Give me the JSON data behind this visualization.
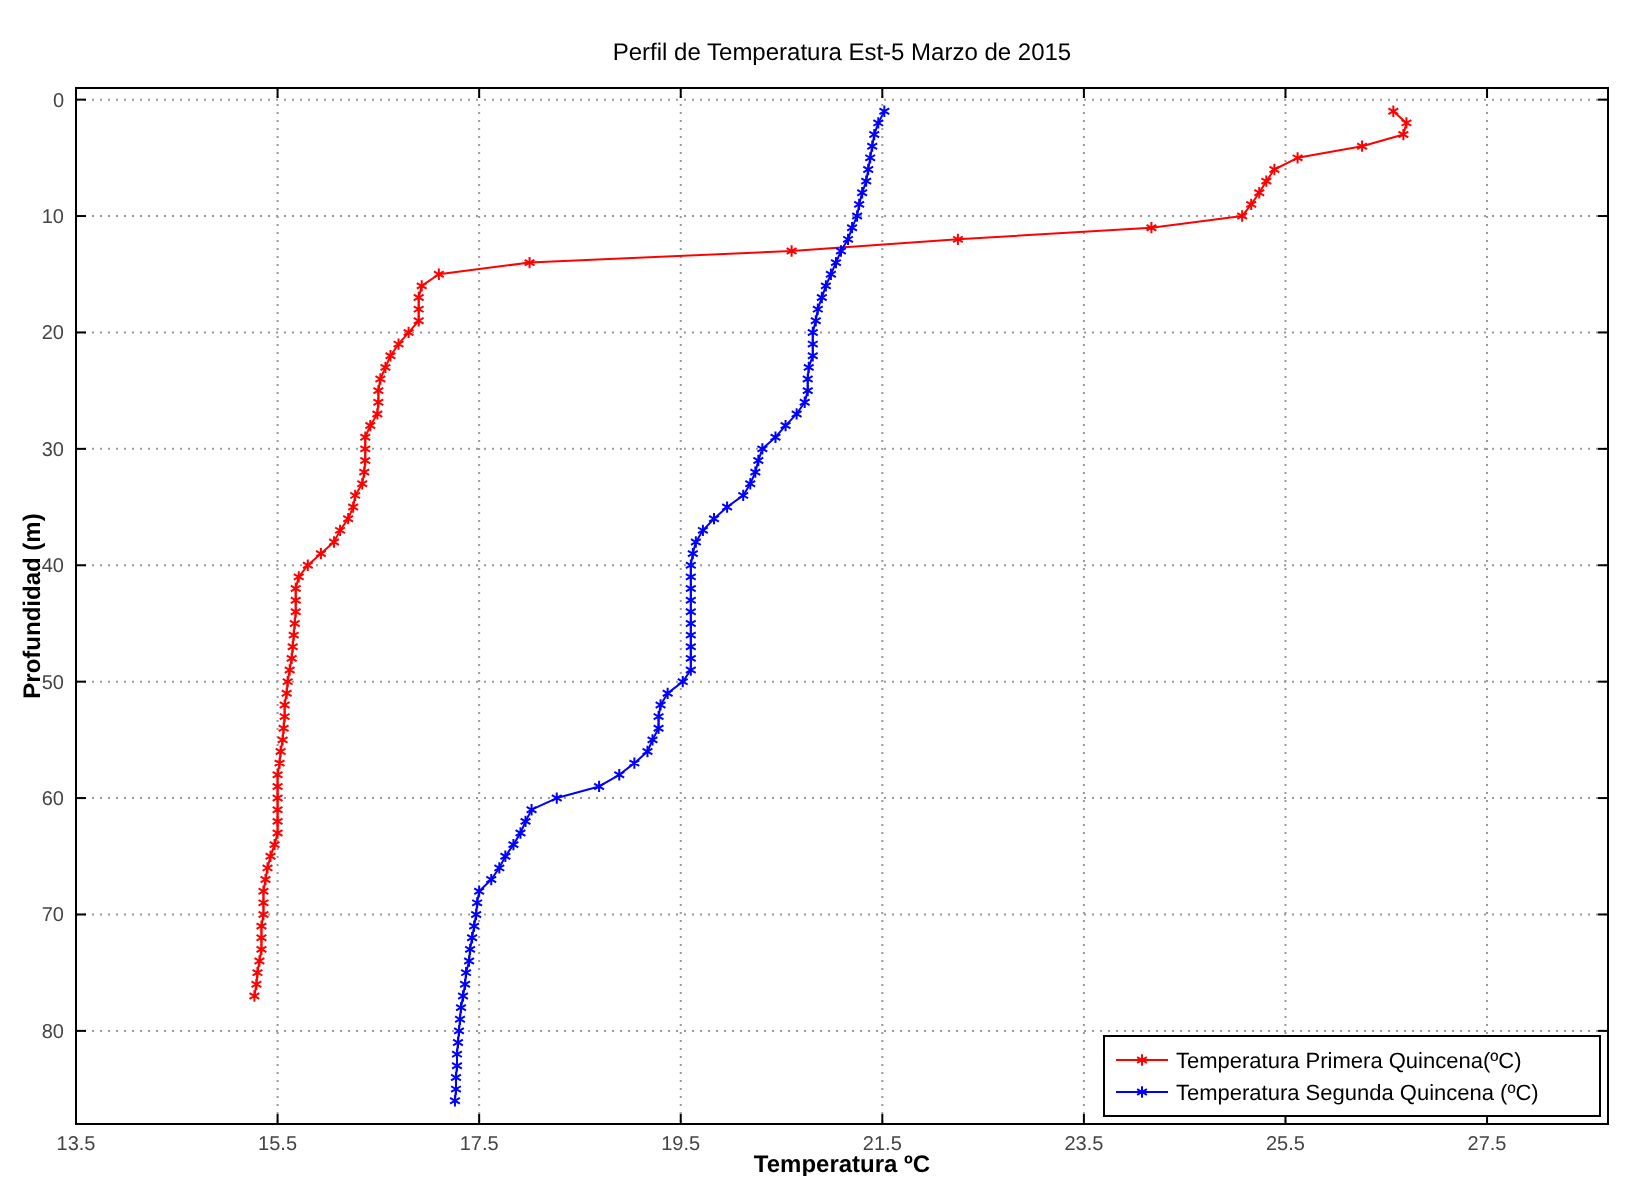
{
  "chart_data": {
    "type": "line",
    "title": "Perfil de Temperatura Est-5 Marzo de 2015",
    "xlabel": "Temperatura ºC",
    "ylabel": "Profundidad (m)",
    "xlim": [
      13.5,
      28.7
    ],
    "xticks": [
      13.5,
      15.5,
      17.5,
      19.5,
      21.5,
      23.5,
      25.5,
      27.5
    ],
    "ylim": [
      88,
      -1
    ],
    "yticks": [
      0,
      10,
      20,
      30,
      40,
      50,
      60,
      70,
      80
    ],
    "grid": true,
    "legend": "bottom right",
    "marker": "cross",
    "line_style": "solid",
    "series": [
      {
        "name": "Temperatura Primera Quincena(ºC)",
        "color": "#ff0000",
        "x": [
          26.57,
          26.7,
          26.67,
          26.26,
          25.62,
          25.39,
          25.31,
          25.24,
          25.16,
          25.07,
          24.17,
          22.25,
          20.6,
          18.0,
          17.1,
          16.93,
          16.9,
          16.9,
          16.9,
          16.8,
          16.7,
          16.62,
          16.57,
          16.52,
          16.5,
          16.5,
          16.49,
          16.42,
          16.37,
          16.37,
          16.37,
          16.36,
          16.34,
          16.27,
          16.25,
          16.2,
          16.12,
          16.06,
          15.93,
          15.8,
          15.71,
          15.68,
          15.68,
          15.68,
          15.67,
          15.66,
          15.65,
          15.64,
          15.62,
          15.6,
          15.59,
          15.57,
          15.57,
          15.56,
          15.55,
          15.53,
          15.52,
          15.5,
          15.5,
          15.5,
          15.5,
          15.5,
          15.5,
          15.47,
          15.43,
          15.4,
          15.38,
          15.36,
          15.36,
          15.36,
          15.34,
          15.34,
          15.34,
          15.32,
          15.3,
          15.29,
          15.27
        ],
        "values": [
          1,
          2,
          3,
          4,
          5,
          6,
          7,
          8,
          9,
          10,
          11,
          12,
          13,
          14,
          15,
          16,
          17,
          18,
          19,
          20,
          21,
          22,
          23,
          24,
          25,
          26,
          27,
          28,
          29,
          30,
          31,
          32,
          33,
          34,
          35,
          36,
          37,
          38,
          39,
          40,
          41,
          42,
          43,
          44,
          45,
          46,
          47,
          48,
          49,
          50,
          51,
          52,
          53,
          54,
          55,
          56,
          57,
          58,
          59,
          60,
          61,
          62,
          63,
          64,
          65,
          66,
          67,
          68,
          69,
          70,
          71,
          72,
          73,
          74,
          75,
          76,
          77
        ]
      },
      {
        "name": "Temperatura Segunda Quincena (ºC)",
        "color": "#0000ff",
        "x": [
          21.52,
          21.46,
          21.42,
          21.4,
          21.38,
          21.36,
          21.34,
          21.3,
          21.27,
          21.25,
          21.2,
          21.16,
          21.09,
          21.04,
          20.99,
          20.94,
          20.9,
          20.86,
          20.84,
          20.81,
          20.81,
          20.81,
          20.77,
          20.76,
          20.76,
          20.73,
          20.65,
          20.54,
          20.44,
          20.31,
          20.27,
          20.24,
          20.19,
          20.12,
          19.96,
          19.83,
          19.72,
          19.65,
          19.62,
          19.6,
          19.6,
          19.6,
          19.6,
          19.6,
          19.6,
          19.6,
          19.6,
          19.6,
          19.6,
          19.52,
          19.37,
          19.3,
          19.28,
          19.28,
          19.22,
          19.17,
          19.04,
          18.89,
          18.69,
          18.27,
          18.02,
          17.96,
          17.91,
          17.84,
          17.76,
          17.7,
          17.62,
          17.5,
          17.48,
          17.47,
          17.45,
          17.43,
          17.41,
          17.4,
          17.37,
          17.36,
          17.34,
          17.32,
          17.31,
          17.3,
          17.29,
          17.28,
          17.28,
          17.27,
          17.27,
          17.26
        ],
        "values": [
          1,
          2,
          3,
          4,
          5,
          6,
          7,
          8,
          9,
          10,
          11,
          12,
          13,
          14,
          15,
          16,
          17,
          18,
          19,
          20,
          21,
          22,
          23,
          24,
          25,
          26,
          27,
          28,
          29,
          30,
          31,
          32,
          33,
          34,
          35,
          36,
          37,
          38,
          39,
          40,
          41,
          42,
          43,
          44,
          45,
          46,
          47,
          48,
          49,
          50,
          51,
          52,
          53,
          54,
          55,
          56,
          57,
          58,
          59,
          60,
          61,
          62,
          63,
          64,
          65,
          66,
          67,
          68,
          69,
          70,
          71,
          72,
          73,
          74,
          75,
          76,
          77,
          78,
          79,
          80,
          81,
          82,
          83,
          84,
          85,
          86
        ]
      }
    ]
  }
}
